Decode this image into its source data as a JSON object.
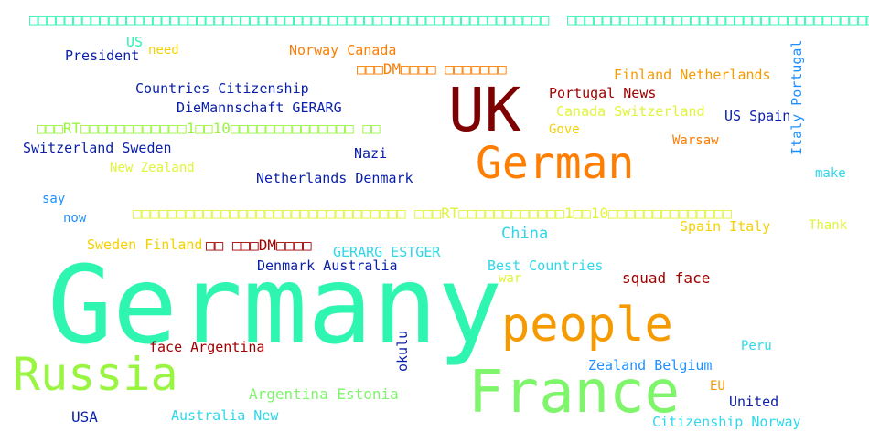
{
  "colors": {
    "teal": "#2ef5b0",
    "maroon": "#7f0000",
    "orange": "#ff7d00",
    "amber": "#f59a00",
    "lime": "#9af542",
    "yellow": "#e0f53a",
    "cyan": "#2ed8e8",
    "sky": "#1f8fff",
    "navy": "#0a1fa8",
    "darkred": "#a10000",
    "gold": "#f5d100"
  },
  "words": {
    "top_boxes_1": "□□□□□□□□□□□□□□□□□□□□□□□□□□□□□□□□□□□□□□□□□□□□□□□□□□□□□□□□□□□",
    "top_boxes_2": "□□□□□□□□□□□□□□□□□□□□□□□□□□□□□□□□□□□□□□",
    "us": "US",
    "need": "need",
    "president": "President",
    "norway_canada": "Norway Canada",
    "italy_portugal": "Italy Portugal",
    "dm_boxes": "□□□DM□□□□ □□□□□□□",
    "finland_netherlands": "Finland Netherlands",
    "countries_citizenship": "Countries Citizenship",
    "uk": "UK",
    "portugal_news": "Portugal News",
    "diemannschaft": "DieMannschaft GERARG",
    "canada_switzerland": "Canada Switzerland",
    "us_spain": "US Spain",
    "rt_line": "□□□RT□□□□□□□□□□□□1□□10□□□□□□□□□□□□□□ □□",
    "gove": "Gove",
    "warsaw": "Warsaw",
    "switzerland_sweden": "Switzerland Sweden",
    "nazi": "Nazi",
    "german": "German",
    "new_zealand": "New Zealand",
    "netherlands_denmark": "Netherlands Denmark",
    "make": "make",
    "say": "say",
    "long_boxes": "□□□□□□□□□□□□□□□□□□□□□□□□□□□□□□□ □□□RT□□□□□□□□□□□□1□□10□□□□□□□□□□□□□□",
    "now": "now",
    "spain_italy": "Spain Italy",
    "thank": "Thank",
    "china": "China",
    "sweden_finland": "Sweden Finland",
    "dm_short": "□□ □□□DM□□□□",
    "gerarg_estger": "GERARG ESTGER",
    "denmark_australia": "Denmark Australia",
    "best_countries": "Best Countries",
    "war": "war",
    "squad_face": "squad face",
    "germany": "Germany",
    "people": "people",
    "face_argentina": "face Argentina",
    "okulu": "okulu",
    "peru": "Peru",
    "russia": "Russia",
    "zealand_belgium": "Zealand Belgium",
    "france": "France",
    "argentina_estonia": "Argentina Estonia",
    "eu": "EU",
    "united": "United",
    "usa": "USA",
    "australia_new": "Australia New",
    "citizenship_norway": "Citizenship Norway"
  }
}
